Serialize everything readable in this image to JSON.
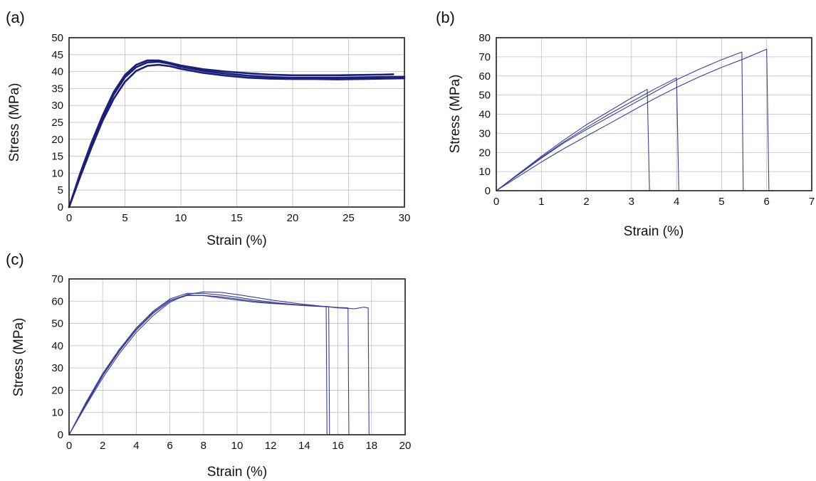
{
  "chart_data": [
    {
      "panel": "(a)",
      "type": "line",
      "xlabel": "Strain (%)",
      "ylabel": "Stress (MPa)",
      "xlim": [
        0,
        30
      ],
      "ylim": [
        0,
        50
      ],
      "xticks": [
        0,
        5,
        10,
        15,
        20,
        25,
        30
      ],
      "yticks": [
        0,
        5,
        10,
        15,
        20,
        25,
        30,
        35,
        40,
        45,
        50
      ],
      "grid": true,
      "color": "#1a1f7a",
      "series": [
        {
          "x": [
            0,
            1,
            2,
            3,
            4,
            5,
            6,
            7,
            8,
            9,
            10,
            12,
            14,
            16,
            18,
            20,
            22,
            24,
            26,
            28,
            29
          ],
          "y": [
            0,
            10,
            19,
            27,
            34,
            39,
            42,
            43.3,
            43.3,
            42.6,
            41.8,
            40.7,
            40,
            39.5,
            39.1,
            38.9,
            38.9,
            38.9,
            39,
            39.1,
            39.2
          ]
        },
        {
          "x": [
            0,
            1,
            2,
            3,
            4,
            5,
            6,
            7,
            8,
            9,
            10,
            12,
            14,
            16,
            18,
            20,
            22,
            24,
            26,
            28,
            30
          ],
          "y": [
            0,
            9.5,
            18.5,
            26.5,
            33.3,
            38.3,
            41.3,
            42.7,
            42.9,
            42.3,
            41.4,
            40.2,
            39.4,
            38.8,
            38.4,
            38.2,
            38.2,
            38.2,
            38.3,
            38.4,
            38.5
          ]
        },
        {
          "x": [
            0,
            1,
            2,
            3,
            4,
            5,
            6,
            7,
            8,
            9,
            10,
            12,
            14,
            16,
            18,
            20,
            22,
            24,
            26,
            28,
            30
          ],
          "y": [
            0,
            9,
            17.5,
            25.5,
            32,
            37,
            40.2,
            41.7,
            42,
            41.6,
            40.8,
            39.6,
            38.8,
            38.2,
            37.9,
            37.8,
            37.8,
            37.7,
            37.8,
            37.9,
            38
          ]
        }
      ]
    },
    {
      "panel": "(b)",
      "type": "line",
      "xlabel": "Strain (%)",
      "ylabel": "Stress (MPa)",
      "xlim": [
        0,
        7
      ],
      "ylim": [
        0,
        80
      ],
      "xticks": [
        0,
        1,
        2,
        3,
        4,
        5,
        6,
        7
      ],
      "yticks": [
        0,
        10,
        20,
        30,
        40,
        50,
        60,
        70,
        80
      ],
      "grid": true,
      "color": "#3a3f9a",
      "series": [
        {
          "x": [
            0,
            0.5,
            1,
            1.5,
            2,
            2.5,
            3,
            3.35,
            3.4
          ],
          "y": [
            0,
            9,
            18,
            26.5,
            34.5,
            41.5,
            48.5,
            53,
            0
          ]
        },
        {
          "x": [
            0,
            0.5,
            1,
            1.5,
            2,
            2.5,
            3,
            3.5,
            4,
            4.05
          ],
          "y": [
            0,
            8.7,
            17.4,
            25.5,
            33,
            40,
            46.5,
            53,
            59,
            0
          ]
        },
        {
          "x": [
            0,
            0.5,
            1,
            1.5,
            2,
            2.5,
            3,
            3.5,
            4,
            4.5,
            5,
            5.45,
            5.48
          ],
          "y": [
            0,
            8.5,
            17,
            25,
            32,
            38.5,
            45,
            51.5,
            58,
            63.5,
            68.5,
            72.5,
            0
          ]
        },
        {
          "x": [
            0,
            0.5,
            1,
            1.5,
            2,
            2.5,
            3,
            3.5,
            4,
            4.5,
            5,
            5.5,
            6,
            6.05
          ],
          "y": [
            0,
            7.5,
            15,
            22,
            28.5,
            35,
            41.5,
            48,
            54,
            59.5,
            64.5,
            69,
            74,
            0
          ]
        }
      ]
    },
    {
      "panel": "(c)",
      "type": "line",
      "xlabel": "Strain (%)",
      "ylabel": "Stress (MPa)",
      "xlim": [
        0,
        20
      ],
      "ylim": [
        0,
        70
      ],
      "xticks": [
        0,
        2,
        4,
        6,
        8,
        10,
        12,
        14,
        16,
        18,
        20
      ],
      "yticks": [
        0,
        10,
        20,
        30,
        40,
        50,
        60,
        70
      ],
      "grid": true,
      "color": "#3a3f9a",
      "series": [
        {
          "x": [
            0,
            1,
            2,
            3,
            4,
            5,
            6,
            7,
            8,
            9,
            10,
            11,
            12,
            13,
            14,
            15,
            15.3,
            15.35
          ],
          "y": [
            0,
            14,
            27,
            38,
            47.5,
            55,
            60.5,
            62.8,
            62.5,
            61.5,
            60.5,
            59.6,
            59,
            58.5,
            58,
            57.6,
            57.5,
            0
          ]
        },
        {
          "x": [
            0,
            1,
            2,
            3,
            4,
            5,
            6,
            7,
            8,
            9,
            10,
            11,
            12,
            13,
            14,
            15,
            15.45,
            15.5
          ],
          "y": [
            0,
            13.5,
            26.5,
            37.5,
            47,
            54.5,
            60,
            62.5,
            62.6,
            62,
            61,
            60,
            59.2,
            58.6,
            58.1,
            57.7,
            57.6,
            0
          ]
        },
        {
          "x": [
            0,
            1,
            2,
            3,
            4,
            5,
            6,
            7,
            8,
            9,
            10,
            11,
            12,
            13,
            14,
            15,
            16,
            16.6,
            16.65
          ],
          "y": [
            0,
            14.5,
            27.5,
            38.5,
            48,
            55.5,
            61,
            63.5,
            63.5,
            62.8,
            61.8,
            60.6,
            59.6,
            58.8,
            58.2,
            57.7,
            57.2,
            57,
            0
          ]
        },
        {
          "x": [
            0,
            1,
            2,
            3,
            4,
            5,
            6,
            7,
            8,
            9,
            10,
            11,
            12,
            13,
            14,
            15,
            16,
            17,
            17.5,
            17.8,
            17.85
          ],
          "y": [
            0,
            13,
            25.5,
            36.5,
            46,
            53.5,
            59.5,
            63,
            64.2,
            64,
            63,
            61.8,
            60.6,
            59.5,
            58.6,
            57.8,
            57,
            56.6,
            57.3,
            57,
            0
          ]
        }
      ]
    }
  ]
}
